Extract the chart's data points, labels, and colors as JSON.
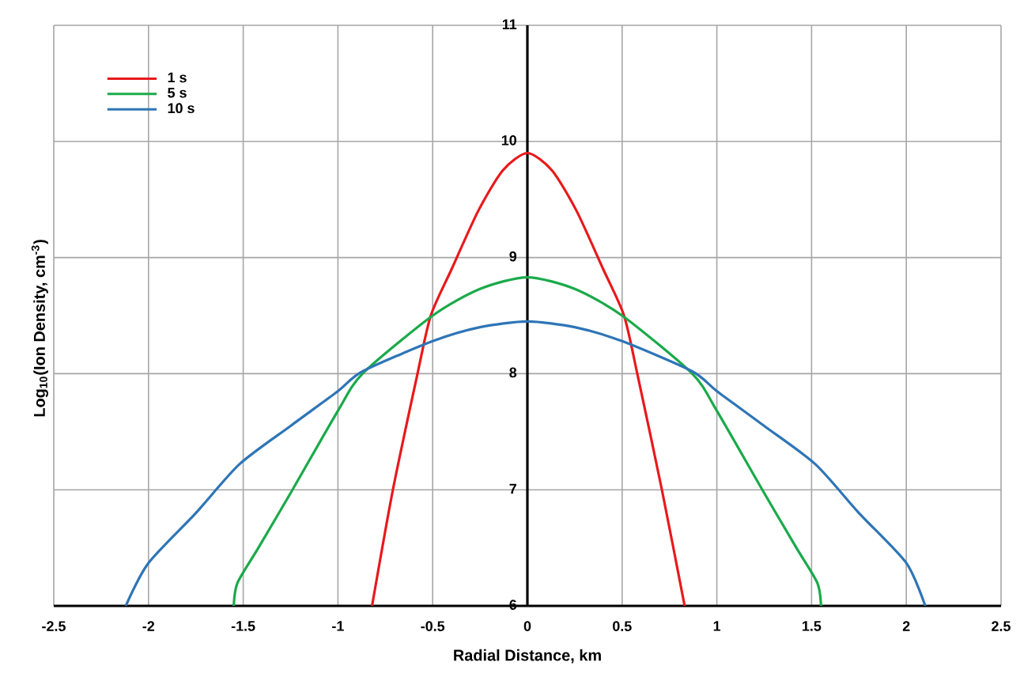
{
  "chart_data": {
    "type": "line",
    "xlabel": "Radial Distance, km",
    "ylabel": "Log$_{10}$(Ion Density, cm$^{-3}$)",
    "xlim": [
      -2.5,
      2.5
    ],
    "ylim": [
      6,
      11
    ],
    "xticks": [
      -2.5,
      -2,
      -1.5,
      -1,
      -0.5,
      0,
      0.5,
      1,
      1.5,
      2,
      2.5
    ],
    "yticks": [
      6,
      7,
      8,
      9,
      10,
      11
    ],
    "grid": true,
    "legend": "top left",
    "marker": "none",
    "series": [
      {
        "name": "1 s",
        "color": "#e8191c",
        "x": [
          -0.82,
          -0.71,
          -0.58,
          -0.51,
          -0.4,
          -0.26,
          -0.13,
          0,
          0.13,
          0.26,
          0.4,
          0.51,
          0.58,
          0.71,
          0.83
        ],
        "values": [
          6,
          7,
          8,
          8.5,
          8.9,
          9.4,
          9.75,
          9.9,
          9.75,
          9.4,
          8.9,
          8.5,
          8,
          7,
          6
        ]
      },
      {
        "name": "5 s",
        "color": "#1aaa4a",
        "x": [
          -1.55,
          -1.53,
          -1.42,
          -1.24,
          -1,
          -0.87,
          -0.5,
          -0.25,
          0,
          0.25,
          0.5,
          0.87,
          1,
          1.24,
          1.42,
          1.53,
          1.55
        ],
        "values": [
          6,
          6.2,
          6.5,
          7,
          7.68,
          8,
          8.5,
          8.73,
          8.83,
          8.73,
          8.5,
          8,
          7.68,
          7,
          6.5,
          6.2,
          6
        ]
      },
      {
        "name": "10 s",
        "color": "#2e75b6",
        "x": [
          -2.12,
          -2,
          -1.75,
          -1.52,
          -1.25,
          -1,
          -0.87,
          -0.5,
          -0.25,
          0,
          0.25,
          0.5,
          0.87,
          1,
          1.25,
          1.52,
          1.75,
          2,
          2.1
        ],
        "values": [
          6,
          6.37,
          6.8,
          7.22,
          7.55,
          7.85,
          8.02,
          8.28,
          8.4,
          8.45,
          8.4,
          8.28,
          8.02,
          7.85,
          7.55,
          7.22,
          6.8,
          6.37,
          6
        ]
      }
    ]
  }
}
